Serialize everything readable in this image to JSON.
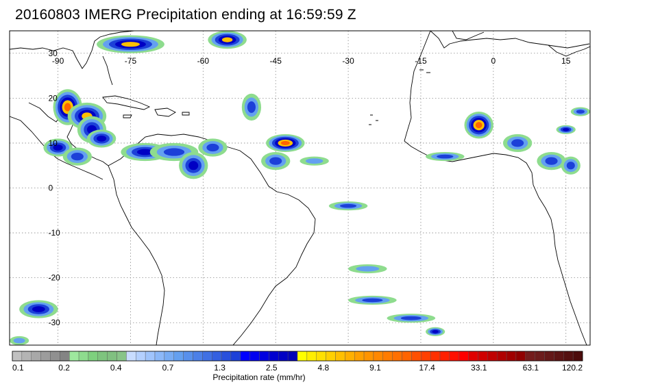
{
  "title": "20160803 IMERG Precipitation ending at 16:59:59 Z",
  "map": {
    "longitude_labels": [
      "-90",
      "-75",
      "-60",
      "-45",
      "-30",
      "-15",
      "0",
      "15"
    ],
    "longitude_values": [
      -90,
      -75,
      -60,
      -45,
      -30,
      -15,
      0,
      15
    ],
    "latitude_labels": [
      "30",
      "20",
      "10",
      "0",
      "-10",
      "-20",
      "-30"
    ],
    "latitude_values": [
      30,
      20,
      10,
      0,
      -10,
      -20,
      -30
    ],
    "lon_range": [
      -100,
      20
    ],
    "lat_range": [
      -35,
      35
    ],
    "grid": "dotted",
    "precip_cells": [
      {
        "lon": -88,
        "lat": 18,
        "rate": 20,
        "rx": 3,
        "ry": 4
      },
      {
        "lon": -84,
        "lat": 16,
        "rate": 10,
        "rx": 4,
        "ry": 3
      },
      {
        "lon": -83,
        "lat": 13,
        "rate": 8,
        "rx": 3,
        "ry": 3
      },
      {
        "lon": -81,
        "lat": 11,
        "rate": 6,
        "rx": 3,
        "ry": 2
      },
      {
        "lon": -90,
        "lat": 9,
        "rate": 5,
        "rx": 3,
        "ry": 2
      },
      {
        "lon": -86,
        "lat": 7,
        "rate": 3,
        "rx": 3,
        "ry": 2
      },
      {
        "lon": -72,
        "lat": 8,
        "rate": 4,
        "rx": 5,
        "ry": 2
      },
      {
        "lon": -66,
        "lat": 8,
        "rate": 3,
        "rx": 5,
        "ry": 2
      },
      {
        "lon": -62,
        "lat": 5,
        "rate": 6,
        "rx": 3,
        "ry": 3
      },
      {
        "lon": -58,
        "lat": 9,
        "rate": 3,
        "rx": 3,
        "ry": 2
      },
      {
        "lon": -75,
        "lat": 32,
        "rate": 10,
        "rx": 7,
        "ry": 2
      },
      {
        "lon": -55,
        "lat": 33,
        "rate": 15,
        "rx": 4,
        "ry": 2
      },
      {
        "lon": -50,
        "lat": 18,
        "rate": 2,
        "rx": 2,
        "ry": 3
      },
      {
        "lon": -43,
        "lat": 10,
        "rate": 20,
        "rx": 4,
        "ry": 2
      },
      {
        "lon": -45,
        "lat": 6,
        "rate": 2,
        "rx": 3,
        "ry": 2
      },
      {
        "lon": -37,
        "lat": 6,
        "rate": 1.5,
        "rx": 3,
        "ry": 1
      },
      {
        "lon": -30,
        "lat": -4,
        "rate": 2,
        "rx": 4,
        "ry": 1
      },
      {
        "lon": -3,
        "lat": 14,
        "rate": 20,
        "rx": 3,
        "ry": 3
      },
      {
        "lon": -10,
        "lat": 7,
        "rate": 3,
        "rx": 4,
        "ry": 1
      },
      {
        "lon": 5,
        "lat": 10,
        "rate": 3,
        "rx": 3,
        "ry": 2
      },
      {
        "lon": 12,
        "lat": 6,
        "rate": 2,
        "rx": 3,
        "ry": 2
      },
      {
        "lon": 16,
        "lat": 5,
        "rate": 2,
        "rx": 2,
        "ry": 2
      },
      {
        "lon": 15,
        "lat": 13,
        "rate": 5,
        "rx": 2,
        "ry": 1
      },
      {
        "lon": 18,
        "lat": 17,
        "rate": 2,
        "rx": 2,
        "ry": 1
      },
      {
        "lon": -26,
        "lat": -18,
        "rate": 1.5,
        "rx": 4,
        "ry": 1
      },
      {
        "lon": -25,
        "lat": -25,
        "rate": 3,
        "rx": 5,
        "ry": 1
      },
      {
        "lon": -17,
        "lat": -29,
        "rate": 3,
        "rx": 5,
        "ry": 1
      },
      {
        "lon": -12,
        "lat": -32,
        "rate": 6,
        "rx": 2,
        "ry": 1
      },
      {
        "lon": -94,
        "lat": -27,
        "rate": 4,
        "rx": 4,
        "ry": 2
      },
      {
        "lon": -98,
        "lat": -34,
        "rate": 1,
        "rx": 2,
        "ry": 1
      }
    ]
  },
  "colorbar": {
    "tick_labels": [
      "0.1",
      "0.2",
      "0.4",
      "0.7",
      "1.3",
      "2.5",
      "4.8",
      "9.1",
      "17.4",
      "33.1",
      "63.1",
      "120.2"
    ],
    "label": "Precipitation rate (mm/hr)",
    "colors": [
      "#c0c0c0",
      "#b4b4b4",
      "#a8a8a8",
      "#9c9c9c",
      "#909090",
      "#848484",
      "#9ee89e",
      "#8edc8e",
      "#7ed07e",
      "#7ec47e",
      "#80c080",
      "#88c488",
      "#c8dcff",
      "#b4d0ff",
      "#a0c4fc",
      "#8cb8f8",
      "#78acf4",
      "#64a0f0",
      "#5890ec",
      "#4c80e8",
      "#4070e4",
      "#3460e0",
      "#2850dc",
      "#1c40d8",
      "#0000ff",
      "#0000f0",
      "#0000e0",
      "#0000d0",
      "#0000c4",
      "#0000b8",
      "#ffff00",
      "#ffee00",
      "#ffe000",
      "#ffd000",
      "#ffc000",
      "#ffb000",
      "#ffa000",
      "#ff9400",
      "#ff8800",
      "#ff7c00",
      "#ff7000",
      "#ff6400",
      "#ff5000",
      "#ff4000",
      "#ff3000",
      "#ff2000",
      "#ff1000",
      "#ff0000",
      "#e00000",
      "#d00000",
      "#c00000",
      "#b00000",
      "#a00000",
      "#900000",
      "#741c1c",
      "#6c1c1c",
      "#641818",
      "#5c1414",
      "#541010",
      "#4c0c0c"
    ]
  }
}
